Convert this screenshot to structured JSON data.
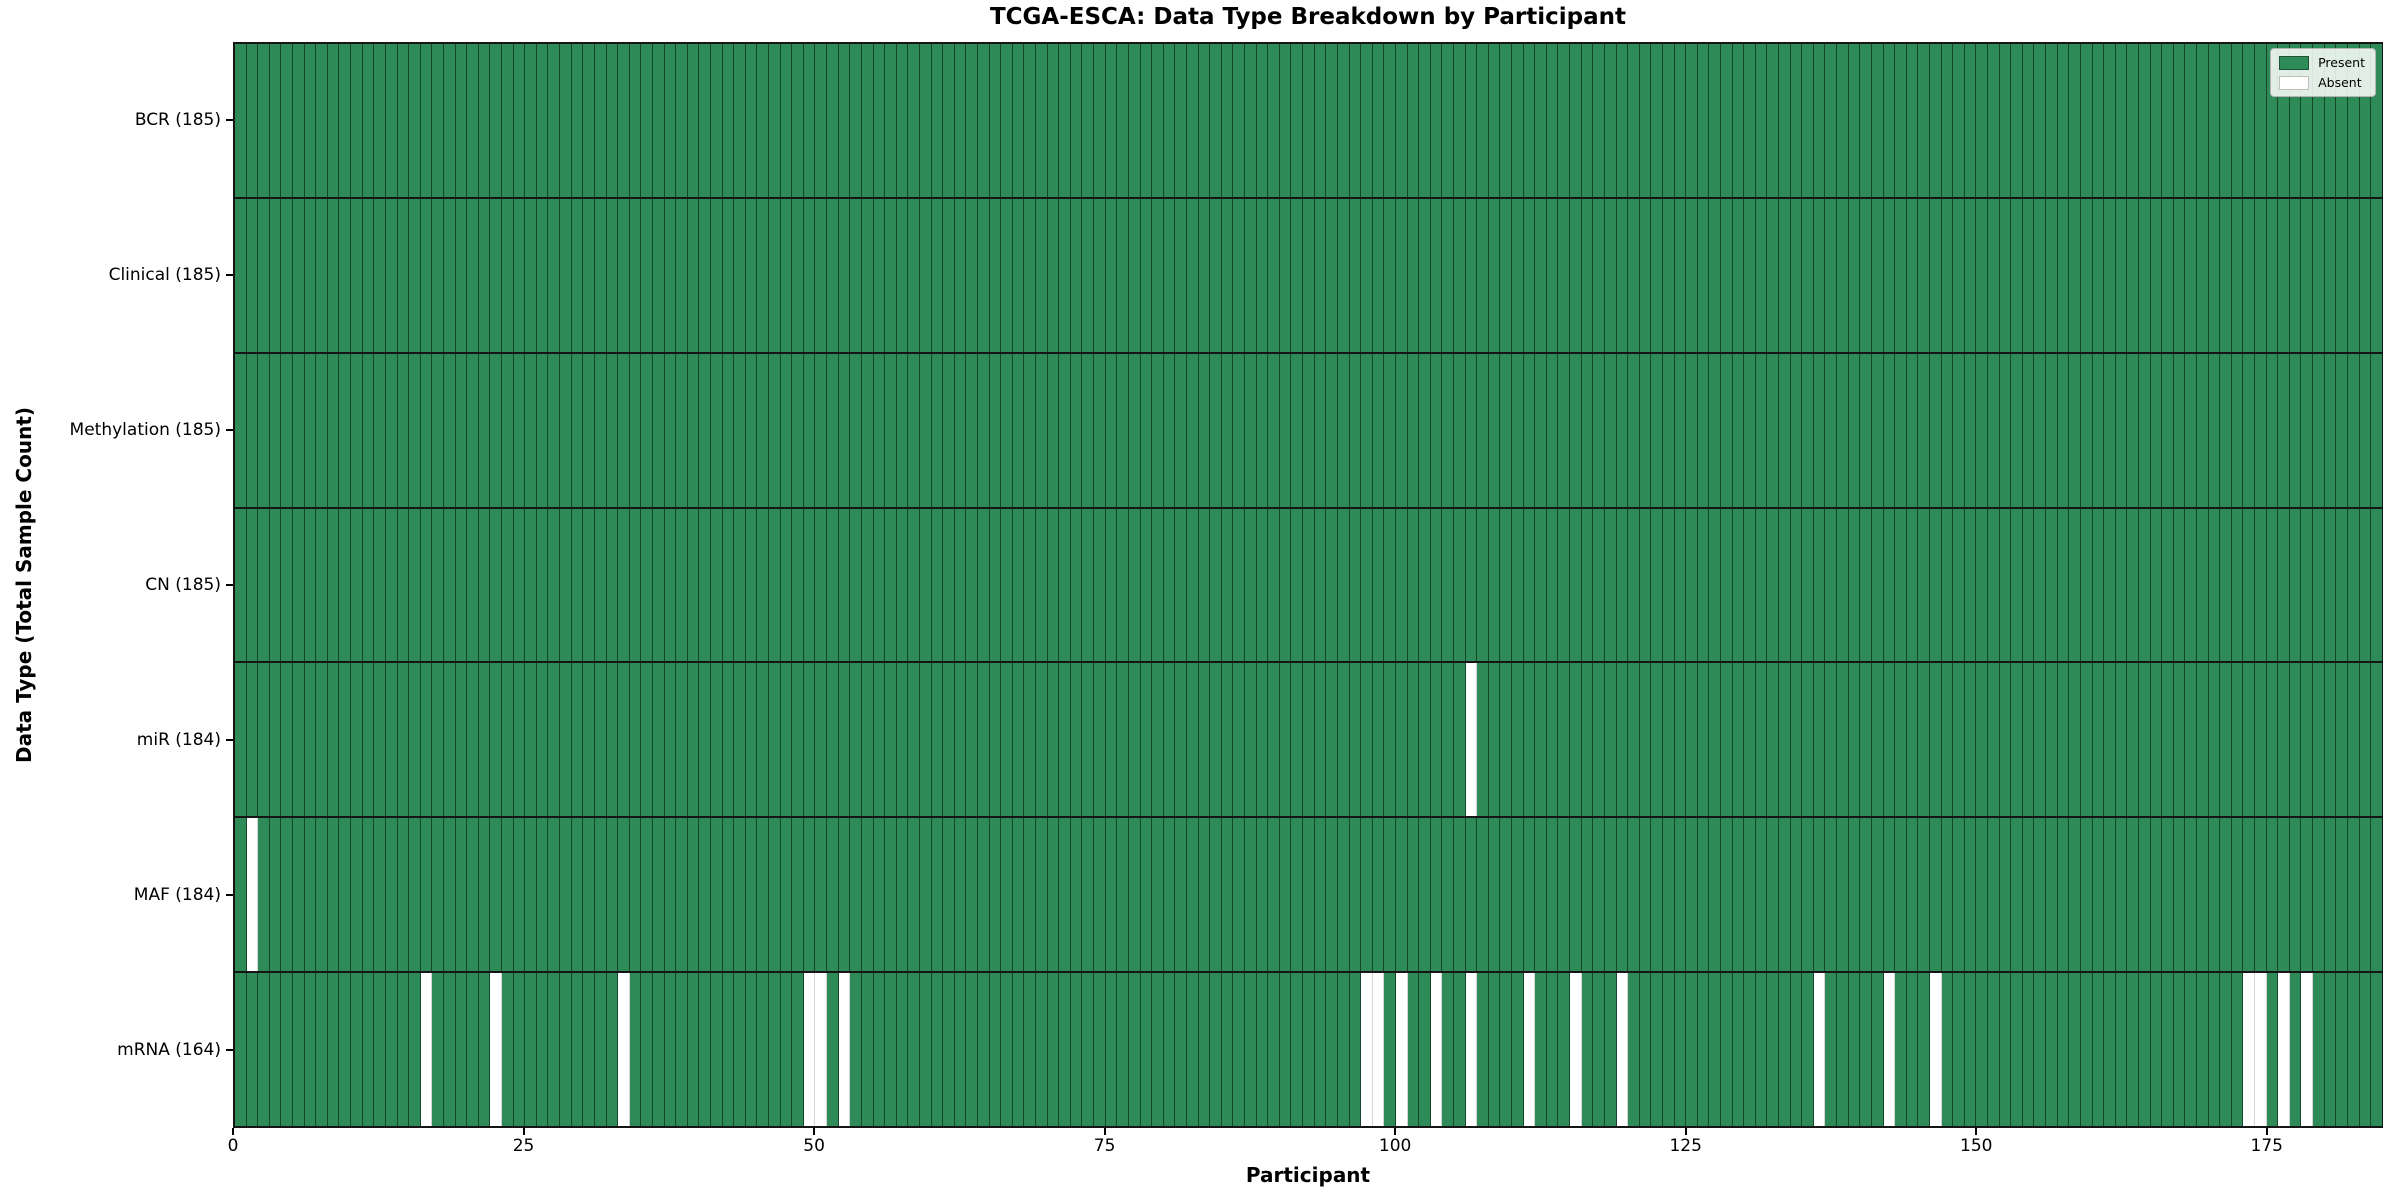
{
  "chart_data": {
    "type": "heatmap",
    "title": "TCGA-ESCA: Data Type Breakdown by Participant",
    "xlabel": "Participant",
    "ylabel": "Data Type (Total Sample Count)",
    "legend": {
      "present": "Present",
      "absent": "Absent",
      "position": "upper right"
    },
    "colors": {
      "present": "#2e8b57",
      "absent": "#ffffff"
    },
    "n_participants": 185,
    "x_ticks": [
      0,
      25,
      50,
      75,
      100,
      125,
      150,
      175
    ],
    "grid": "cell-borders",
    "rows": [
      {
        "label": "BCR (185)",
        "data_type": "BCR",
        "total_sample_count": 185,
        "absent_participants": []
      },
      {
        "label": "Clinical (185)",
        "data_type": "Clinical",
        "total_sample_count": 185,
        "absent_participants": []
      },
      {
        "label": "Methylation (185)",
        "data_type": "Methylation",
        "total_sample_count": 185,
        "absent_participants": []
      },
      {
        "label": "CN (185)",
        "data_type": "CN",
        "total_sample_count": 185,
        "absent_participants": []
      },
      {
        "label": "miR (184)",
        "data_type": "miR",
        "total_sample_count": 184,
        "absent_participants": [
          106
        ]
      },
      {
        "label": "MAF (184)",
        "data_type": "MAF",
        "total_sample_count": 184,
        "absent_participants": [
          1
        ]
      },
      {
        "label": "mRNA (164)",
        "data_type": "mRNA",
        "total_sample_count": 164,
        "absent_participants": [
          16,
          22,
          33,
          49,
          50,
          52,
          97,
          98,
          100,
          103,
          106,
          111,
          115,
          119,
          136,
          142,
          146,
          173,
          174,
          176,
          178
        ]
      }
    ]
  }
}
